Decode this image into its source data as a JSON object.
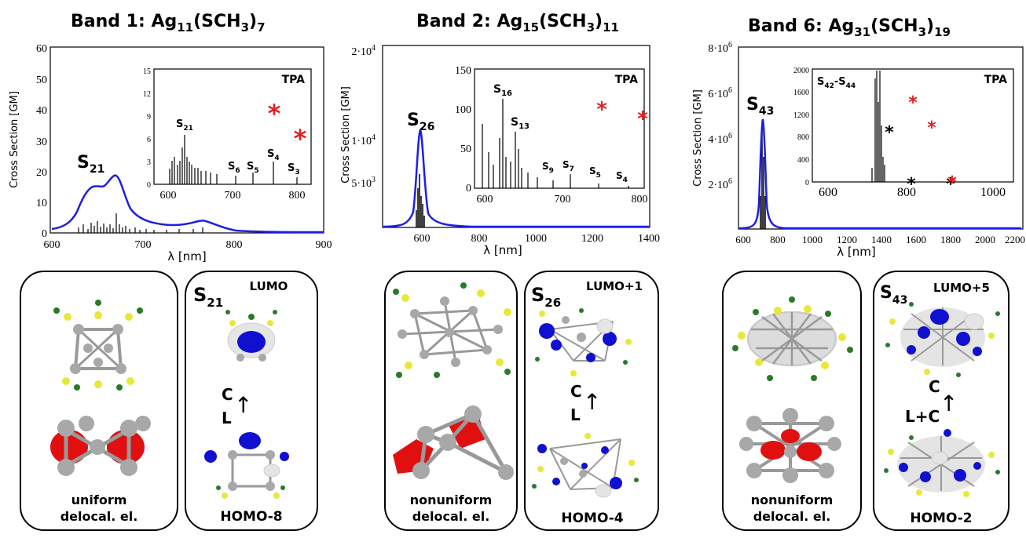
{
  "bands": [
    {
      "title": "Band 1: Ag",
      "formula": {
        "ag_sub": "11",
        "lig": "(SCH",
        "lig_sub": "3",
        "close": ")",
        "n_sub": "7"
      },
      "ylabel": "Cross Section [GM]",
      "xlabel": "λ [nm]",
      "yticks": [
        "0",
        "10",
        "20",
        "30",
        "40",
        "50",
        "60"
      ],
      "xticks": [
        "600",
        "700",
        "800",
        "900"
      ],
      "peak_label": "S",
      "peak_sub": "21",
      "inset": {
        "tag": "TPA",
        "yticks": [
          "0",
          "3",
          "6",
          "9",
          "12",
          "15"
        ],
        "xticks": [
          "600",
          "700",
          "800"
        ],
        "labels": [
          {
            "s": "S",
            "sub": "21"
          },
          {
            "s": "S",
            "sub": "6"
          },
          {
            "s": "S",
            "sub": "5"
          },
          {
            "s": "S",
            "sub": "4"
          },
          {
            "s": "S",
            "sub": "3"
          }
        ],
        "star": "*"
      },
      "left_caption": [
        "uniform",
        "delocal. el."
      ],
      "right_state": "S",
      "right_state_sub": "21",
      "right_top": "LUMO",
      "right_bottom": "HOMO-8",
      "arrow_top": "C",
      "arrow_bottom": "L",
      "arrow": "↑"
    },
    {
      "title": "Band 2: Ag",
      "formula": {
        "ag_sub": "15",
        "lig": "(SCH",
        "lig_sub": "3",
        "close": ")",
        "n_sub": "11"
      },
      "ylabel": "Cross Section [GM]",
      "xlabel": "λ [nm]",
      "yticks": [
        "5·10",
        "1·10",
        "2·10"
      ],
      "ytick_exp": "3,4,4",
      "xticks": [
        "600",
        "800",
        "1000",
        "1200",
        "1400"
      ],
      "peak_label": "S",
      "peak_sub": "26",
      "inset": {
        "tag": "TPA",
        "yticks": [
          "0",
          "50",
          "100",
          "150"
        ],
        "xticks": [
          "600",
          "700",
          "800"
        ],
        "labels": [
          {
            "s": "S",
            "sub": "16"
          },
          {
            "s": "S",
            "sub": "13"
          },
          {
            "s": "S",
            "sub": "9"
          },
          {
            "s": "S",
            "sub": "7"
          },
          {
            "s": "S",
            "sub": "5"
          },
          {
            "s": "S",
            "sub": "4"
          }
        ],
        "star": "*"
      },
      "left_caption": [
        "nonuniform",
        "delocal. el."
      ],
      "right_state": "S",
      "right_state_sub": "26",
      "right_top": "LUMO+1",
      "right_bottom": "HOMO-4",
      "arrow_top": "C",
      "arrow_bottom": "L",
      "arrow": "↑"
    },
    {
      "title": "Band 6: Ag",
      "formula": {
        "ag_sub": "31",
        "lig": "(SCH",
        "lig_sub": "3",
        "close": ")",
        "n_sub": "19"
      },
      "ylabel": "Cross Section [GM]",
      "xlabel": "λ [nm]",
      "yticks": [
        "2·10",
        "4·10",
        "6·10",
        "8·10"
      ],
      "xticks": [
        "600",
        "800",
        "1000",
        "1200",
        "1400",
        "1600",
        "1800",
        "2000",
        "2200"
      ],
      "peak_label": "S",
      "peak_sub": "43",
      "inset": {
        "tag": "TPA",
        "yticks": [
          "0",
          "400",
          "800",
          "1200",
          "1600",
          "2000"
        ],
        "xticks": [
          "600",
          "800",
          "1000"
        ],
        "labels": [
          {
            "s": "S",
            "sub": "42",
            "dash": "-S",
            "sub2": "44"
          }
        ],
        "star": "*"
      },
      "left_caption": [
        "nonuniform",
        "delocal. el."
      ],
      "right_state": "S",
      "right_state_sub": "43",
      "right_top": "LUMO+5",
      "right_bottom": "HOMO-2",
      "arrow_top": "C",
      "arrow_bottom": "L+C",
      "arrow": "↑"
    }
  ],
  "colors": {
    "spectrum": "#1e1ee6",
    "stick": "#000000",
    "star_red": "#e61e1e",
    "orbital_red": "#e01010",
    "orbital_blue": "#1010d0",
    "sulfur": "#e8e83a",
    "carbon": "#2a7a2a",
    "silver": "#a8a8a8"
  }
}
